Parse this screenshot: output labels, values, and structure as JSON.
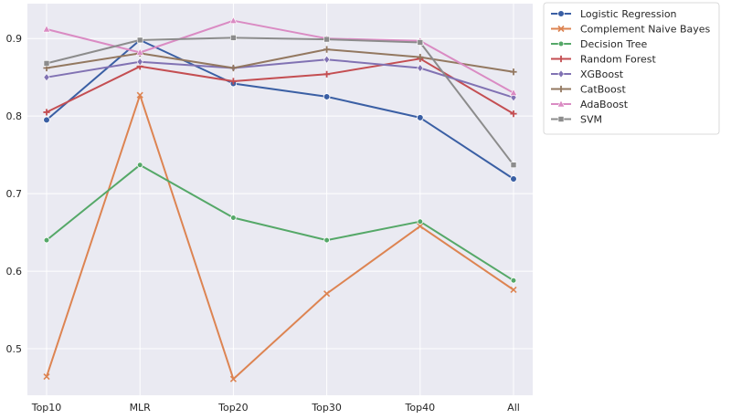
{
  "chart_data": {
    "type": "line",
    "title": "",
    "xlabel": "",
    "ylabel": "",
    "categories": [
      "Top10",
      "MLR",
      "Top20",
      "Top30",
      "Top40",
      "All"
    ],
    "ylim": [
      0.44,
      0.945
    ],
    "yticks": [
      0.5,
      0.6,
      0.7,
      0.8,
      0.9
    ],
    "ytick_labels": [
      "0.5",
      "0.6",
      "0.7",
      "0.8",
      "0.9"
    ],
    "grid": true,
    "legend_position": "outside-top-right",
    "series": [
      {
        "name": "Logistic Regression",
        "color": "#3a5fa4",
        "marker": "circle",
        "values": [
          0.795,
          0.898,
          0.842,
          0.825,
          0.798,
          0.719
        ]
      },
      {
        "name": "Complement Naive Bayes",
        "color": "#dd8452",
        "marker": "x",
        "values": [
          0.464,
          0.827,
          0.461,
          0.571,
          0.658,
          0.576
        ]
      },
      {
        "name": "Decision Tree",
        "color": "#55a868",
        "marker": "circle-small",
        "values": [
          0.64,
          0.737,
          0.669,
          0.64,
          0.664,
          0.588
        ]
      },
      {
        "name": "Random Forest",
        "color": "#c44e52",
        "marker": "plus",
        "values": [
          0.805,
          0.864,
          0.845,
          0.854,
          0.874,
          0.803
        ]
      },
      {
        "name": "XGBoost",
        "color": "#8172b3",
        "marker": "diamond",
        "values": [
          0.85,
          0.87,
          0.862,
          0.873,
          0.862,
          0.824
        ]
      },
      {
        "name": "CatBoost",
        "color": "#937860",
        "marker": "plus",
        "values": [
          0.862,
          0.881,
          0.862,
          0.886,
          0.876,
          0.857
        ]
      },
      {
        "name": "AdaBoost",
        "color": "#da8bc3",
        "marker": "triangle",
        "values": [
          0.912,
          0.882,
          0.923,
          0.9,
          0.897,
          0.83
        ]
      },
      {
        "name": "SVM",
        "color": "#8c8c8c",
        "marker": "square",
        "values": [
          0.868,
          0.898,
          0.901,
          0.899,
          0.895,
          0.737
        ]
      }
    ]
  }
}
